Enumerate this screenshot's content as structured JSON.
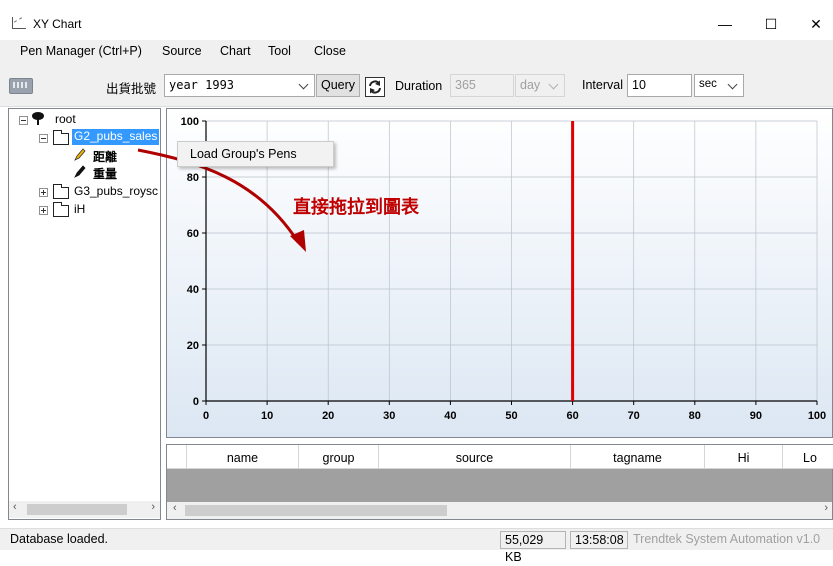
{
  "window": {
    "title": "XY Chart",
    "minimize_glyph": "—",
    "maximize_glyph": "☐",
    "close_glyph": "✕"
  },
  "menu": [
    "Pen Manager (Ctrl+P)",
    "Source",
    "Chart",
    "Tool",
    "Close"
  ],
  "toolbar": {
    "batch_label": "出貨批號",
    "batch_value": "year 1993",
    "query_label": "Query",
    "duration_label": "Duration",
    "duration_value": "365",
    "duration_unit": "day",
    "interval_label": "Interval",
    "interval_value": "10",
    "interval_unit": "sec"
  },
  "tree": {
    "root": "root",
    "nodes": [
      "G2_pubs_sales",
      "距離",
      "重量",
      "G3_pubs_roysc",
      "iH"
    ]
  },
  "context_menu": {
    "item": "Load Group's Pens"
  },
  "annotation": {
    "text": "直接拖拉到圖表",
    "color": "#c00000"
  },
  "chart_data": {
    "type": "line",
    "x_ticks": [
      "0",
      "10",
      "20",
      "30",
      "40",
      "50",
      "60",
      "70",
      "80",
      "90",
      "100"
    ],
    "y_ticks": [
      "0",
      "20",
      "40",
      "60",
      "80",
      "100"
    ],
    "xlim": [
      0,
      100
    ],
    "ylim": [
      0,
      100
    ],
    "grid": true,
    "cursor_x": 60,
    "cursor_color": "#e00000",
    "series": []
  },
  "grid_columns": [
    "name",
    "group",
    "source",
    "tagname",
    "Hi",
    "Lo"
  ],
  "status": {
    "message": "Database loaded.",
    "memory": "55,029 KB",
    "time": "13:58:08",
    "vendor": "Trendtek System Automation v1.0"
  },
  "colors": {
    "selection": "#3399ff",
    "chart_bg_top": "#ffffff",
    "chart_bg_bottom": "#dce7f3"
  }
}
